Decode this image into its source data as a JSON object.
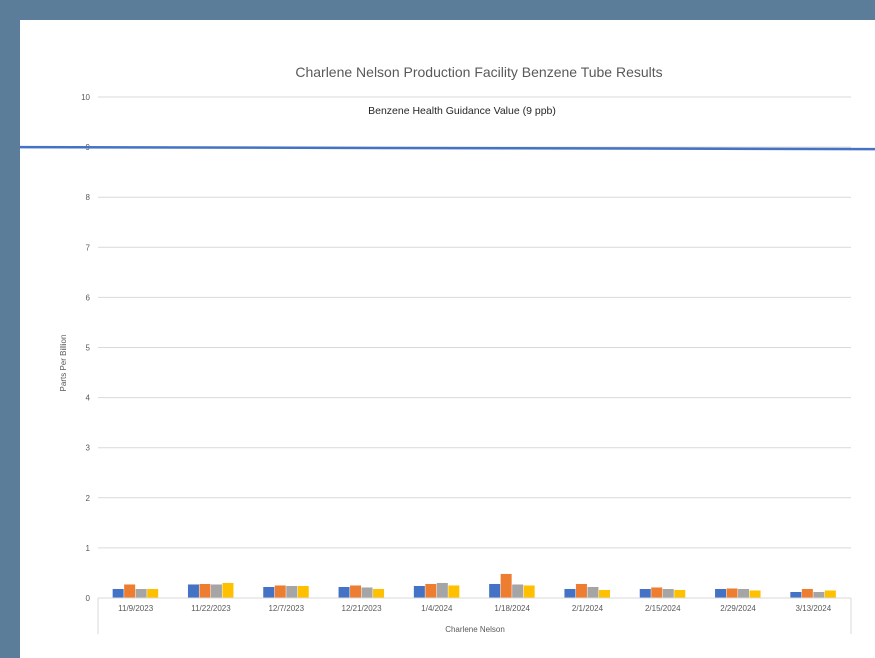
{
  "chart_data": {
    "type": "bar",
    "title": "Charlene Nelson Production Facility Benzene Tube Results",
    "xlabel": "Charlene Nelson",
    "ylabel": "Parts Per Billion",
    "ylim": [
      0,
      10
    ],
    "yticks": [
      "0",
      "1",
      "2",
      "3",
      "4",
      "5",
      "6",
      "7",
      "8",
      "9",
      "10"
    ],
    "grid": true,
    "categories": [
      "11/9/2023",
      "11/22/2023",
      "12/7/2023",
      "12/21/2023",
      "1/4/2024",
      "1/18/2024",
      "2/1/2024",
      "2/15/2024",
      "2/29/2024",
      "3/13/2024"
    ],
    "series": [
      {
        "color": "#4472c4",
        "values": [
          0.18,
          0.27,
          0.22,
          0.22,
          0.24,
          0.28,
          0.18,
          0.18,
          0.18,
          0.12
        ]
      },
      {
        "color": "#ed7d31",
        "values": [
          0.27,
          0.28,
          0.25,
          0.25,
          0.28,
          0.48,
          0.28,
          0.21,
          0.19,
          0.18
        ]
      },
      {
        "color": "#a5a5a5",
        "values": [
          0.18,
          0.27,
          0.24,
          0.21,
          0.3,
          0.27,
          0.22,
          0.18,
          0.18,
          0.12
        ]
      },
      {
        "color": "#ffc000",
        "values": [
          0.18,
          0.3,
          0.24,
          0.18,
          0.25,
          0.25,
          0.16,
          0.16,
          0.15,
          0.15
        ]
      }
    ],
    "reference_line": {
      "label": "Benzene Health Guidance Value (9 ppb)",
      "value": 9,
      "color": "#4472c4"
    }
  }
}
